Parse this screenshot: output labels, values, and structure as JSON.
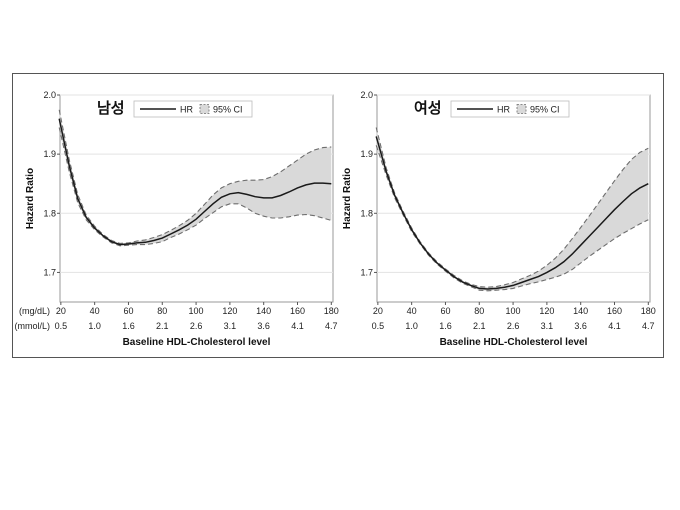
{
  "chart_data": [
    {
      "type": "line",
      "title": "남성",
      "xlabel": "Baseline HDL-Cholesterol level",
      "ylabel": "Hazard Ratio",
      "xlim": [
        20,
        180
      ],
      "ylim": [
        1.65,
        2.0
      ],
      "yticks": [
        "1.7",
        "1.8",
        "1.9",
        "2.0"
      ],
      "ytick_values": [
        1.7,
        1.8,
        1.9,
        2.0
      ],
      "xticks_mgdl": [
        "20",
        "40",
        "60",
        "80",
        "100",
        "120",
        "140",
        "160",
        "180"
      ],
      "xtick_values": [
        20,
        40,
        60,
        80,
        100,
        120,
        140,
        160,
        180
      ],
      "xticks_mmol": [
        "0.5",
        "1.0",
        "1.6",
        "2.1",
        "2.6",
        "3.1",
        "3.6",
        "4.1",
        "4.7"
      ],
      "unit_mgdl": "(mg/dL)",
      "unit_mmol": "(mmol/L)",
      "legend": {
        "line_label": "HR",
        "band_label": "95% CI",
        "position": "top-center"
      },
      "grid": true,
      "series": [
        {
          "name": "HR",
          "x": [
            19,
            25,
            30,
            35,
            40,
            45,
            50,
            55,
            60,
            65,
            70,
            75,
            80,
            85,
            90,
            95,
            100,
            105,
            110,
            115,
            120,
            125,
            130,
            135,
            140,
            145,
            150,
            155,
            160,
            165,
            170,
            175,
            180
          ],
          "y": [
            1.96,
            1.88,
            1.825,
            1.793,
            1.775,
            1.762,
            1.752,
            1.747,
            1.748,
            1.75,
            1.751,
            1.754,
            1.758,
            1.765,
            1.772,
            1.78,
            1.79,
            1.803,
            1.816,
            1.827,
            1.833,
            1.835,
            1.832,
            1.828,
            1.826,
            1.826,
            1.83,
            1.836,
            1.843,
            1.848,
            1.851,
            1.851,
            1.85
          ]
        },
        {
          "name": "95% CI upper",
          "x": [
            19,
            25,
            30,
            35,
            40,
            45,
            50,
            55,
            60,
            65,
            70,
            75,
            80,
            85,
            90,
            95,
            100,
            105,
            110,
            115,
            120,
            125,
            130,
            135,
            140,
            145,
            150,
            155,
            160,
            165,
            170,
            175,
            180
          ],
          "y": [
            1.975,
            1.89,
            1.832,
            1.797,
            1.778,
            1.764,
            1.754,
            1.749,
            1.75,
            1.753,
            1.755,
            1.759,
            1.764,
            1.771,
            1.779,
            1.788,
            1.8,
            1.815,
            1.831,
            1.843,
            1.85,
            1.854,
            1.856,
            1.856,
            1.857,
            1.862,
            1.87,
            1.88,
            1.89,
            1.9,
            1.907,
            1.911,
            1.912
          ]
        },
        {
          "name": "95% CI lower",
          "x": [
            19,
            25,
            30,
            35,
            40,
            45,
            50,
            55,
            60,
            65,
            70,
            75,
            80,
            85,
            90,
            95,
            100,
            105,
            110,
            115,
            120,
            125,
            130,
            135,
            140,
            145,
            150,
            155,
            160,
            165,
            170,
            175,
            180
          ],
          "y": [
            1.945,
            1.87,
            1.818,
            1.789,
            1.772,
            1.76,
            1.75,
            1.745,
            1.746,
            1.747,
            1.747,
            1.749,
            1.752,
            1.759,
            1.765,
            1.772,
            1.78,
            1.791,
            1.801,
            1.811,
            1.816,
            1.816,
            1.809,
            1.8,
            1.795,
            1.792,
            1.792,
            1.794,
            1.797,
            1.798,
            1.796,
            1.792,
            1.788
          ]
        }
      ]
    },
    {
      "type": "line",
      "title": "여성",
      "xlabel": "Baseline HDL-Cholesterol level",
      "ylabel": "Hazard Ratio",
      "xlim": [
        20,
        180
      ],
      "ylim": [
        1.65,
        2.0
      ],
      "yticks": [
        "1.7",
        "1.8",
        "1.9",
        "2.0"
      ],
      "ytick_values": [
        1.7,
        1.8,
        1.9,
        2.0
      ],
      "xticks_mgdl": [
        "20",
        "40",
        "60",
        "80",
        "100",
        "120",
        "140",
        "160",
        "180"
      ],
      "xtick_values": [
        20,
        40,
        60,
        80,
        100,
        120,
        140,
        160,
        180
      ],
      "xticks_mmol": [
        "0.5",
        "1.0",
        "1.6",
        "2.1",
        "2.6",
        "3.1",
        "3.6",
        "4.1",
        "4.7"
      ],
      "unit_mgdl": "(mg/dL)",
      "unit_mmol": "(mmol/L)",
      "legend": {
        "line_label": "HR",
        "band_label": "95% CI",
        "position": "top-center"
      },
      "grid": true,
      "series": [
        {
          "name": "HR",
          "x": [
            19,
            25,
            30,
            35,
            40,
            45,
            50,
            55,
            60,
            65,
            70,
            75,
            80,
            85,
            90,
            95,
            100,
            105,
            110,
            115,
            120,
            125,
            130,
            135,
            140,
            145,
            150,
            155,
            160,
            165,
            170,
            175,
            180
          ],
          "y": [
            1.93,
            1.87,
            1.83,
            1.8,
            1.772,
            1.75,
            1.731,
            1.716,
            1.704,
            1.693,
            1.684,
            1.678,
            1.673,
            1.672,
            1.673,
            1.675,
            1.678,
            1.683,
            1.688,
            1.693,
            1.7,
            1.708,
            1.718,
            1.731,
            1.746,
            1.761,
            1.776,
            1.791,
            1.806,
            1.82,
            1.833,
            1.843,
            1.85
          ]
        },
        {
          "name": "95% CI upper",
          "x": [
            19,
            25,
            30,
            35,
            40,
            45,
            50,
            55,
            60,
            65,
            70,
            75,
            80,
            85,
            90,
            95,
            100,
            105,
            110,
            115,
            120,
            125,
            130,
            135,
            140,
            145,
            150,
            155,
            160,
            165,
            170,
            175,
            180
          ],
          "y": [
            1.945,
            1.876,
            1.834,
            1.803,
            1.775,
            1.752,
            1.733,
            1.718,
            1.706,
            1.695,
            1.686,
            1.68,
            1.676,
            1.675,
            1.676,
            1.679,
            1.683,
            1.689,
            1.695,
            1.702,
            1.712,
            1.724,
            1.739,
            1.757,
            1.776,
            1.795,
            1.815,
            1.835,
            1.855,
            1.874,
            1.891,
            1.903,
            1.91
          ]
        },
        {
          "name": "95% CI lower",
          "x": [
            19,
            25,
            30,
            35,
            40,
            45,
            50,
            55,
            60,
            65,
            70,
            75,
            80,
            85,
            90,
            95,
            100,
            105,
            110,
            115,
            120,
            125,
            130,
            135,
            140,
            145,
            150,
            155,
            160,
            165,
            170,
            175,
            180
          ],
          "y": [
            1.915,
            1.864,
            1.826,
            1.797,
            1.769,
            1.748,
            1.729,
            1.714,
            1.702,
            1.691,
            1.682,
            1.676,
            1.67,
            1.669,
            1.67,
            1.671,
            1.673,
            1.677,
            1.681,
            1.684,
            1.688,
            1.692,
            1.697,
            1.705,
            1.716,
            1.727,
            1.737,
            1.747,
            1.757,
            1.766,
            1.774,
            1.782,
            1.789
          ]
        }
      ]
    }
  ]
}
